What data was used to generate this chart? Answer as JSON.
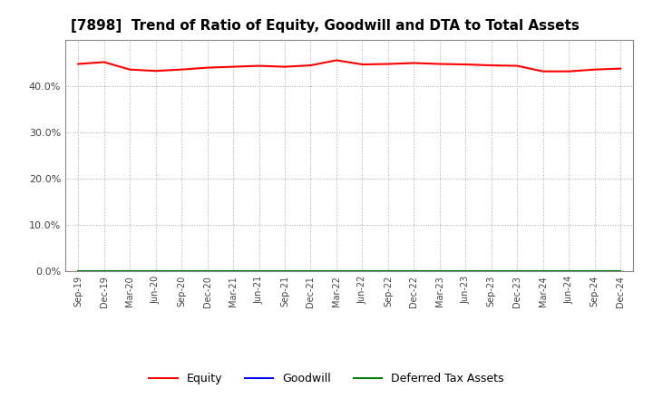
{
  "title": "[7898]  Trend of Ratio of Equity, Goodwill and DTA to Total Assets",
  "x_labels": [
    "Sep-19",
    "Dec-19",
    "Mar-20",
    "Jun-20",
    "Sep-20",
    "Dec-20",
    "Mar-21",
    "Jun-21",
    "Sep-21",
    "Dec-21",
    "Mar-22",
    "Jun-22",
    "Sep-22",
    "Dec-22",
    "Mar-23",
    "Jun-23",
    "Sep-23",
    "Dec-23",
    "Mar-24",
    "Jun-24",
    "Sep-24",
    "Dec-24"
  ],
  "equity": [
    0.448,
    0.452,
    0.436,
    0.433,
    0.436,
    0.44,
    0.442,
    0.444,
    0.442,
    0.445,
    0.456,
    0.447,
    0.448,
    0.45,
    0.448,
    0.447,
    0.445,
    0.444,
    0.432,
    0.432,
    0.436,
    0.438
  ],
  "goodwill": [
    0.0,
    0.0,
    0.0,
    0.0,
    0.0,
    0.0,
    0.0,
    0.0,
    0.0,
    0.0,
    0.0,
    0.0,
    0.0,
    0.0,
    0.0,
    0.0,
    0.0,
    0.0,
    0.0,
    0.0,
    0.0,
    0.0
  ],
  "dta": [
    0.0,
    0.0,
    0.0,
    0.0,
    0.0,
    0.0,
    0.0,
    0.0,
    0.0,
    0.0,
    0.0,
    0.0,
    0.0,
    0.0,
    0.0,
    0.0,
    0.0,
    0.0,
    0.0,
    0.0,
    0.0,
    0.0
  ],
  "equity_color": "#ff0000",
  "goodwill_color": "#0000ff",
  "dta_color": "#008000",
  "ylim": [
    0.0,
    0.5
  ],
  "yticks": [
    0.0,
    0.1,
    0.2,
    0.3,
    0.4
  ],
  "background_color": "#ffffff",
  "grid_color": "#aaaaaa",
  "title_fontsize": 11,
  "legend_labels": [
    "Equity",
    "Goodwill",
    "Deferred Tax Assets"
  ]
}
